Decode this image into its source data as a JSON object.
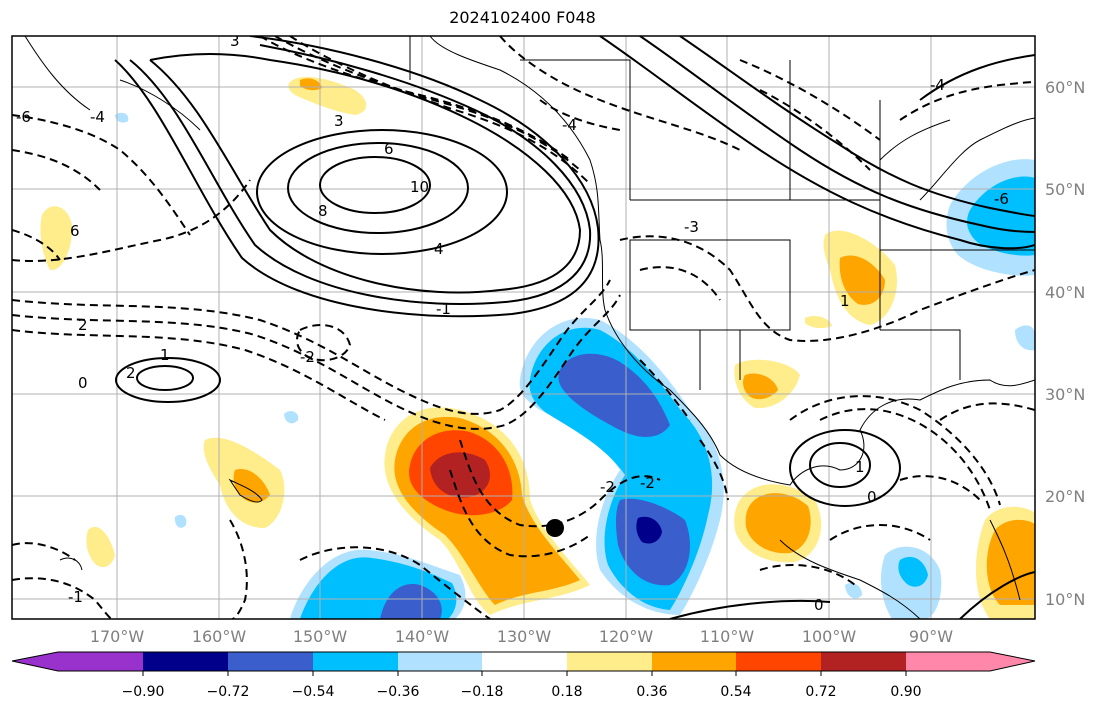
{
  "title": "2024102400 F048",
  "latitude_labels": [
    "60°N",
    "50°N",
    "40°N",
    "30°N",
    "20°N",
    "10°N"
  ],
  "longitude_labels": [
    "170°W",
    "160°W",
    "150°W",
    "140°W",
    "130°W",
    "120°W",
    "110°W",
    "100°W",
    "90°W"
  ],
  "colorbar": {
    "ticks": [
      "−0.90",
      "−0.72",
      "−0.54",
      "−0.36",
      "−0.18",
      "0.18",
      "0.36",
      "0.54",
      "0.72",
      "0.90"
    ],
    "colors": [
      "#9932cc",
      "#00008b",
      "#3a5fcd",
      "#00bfff",
      "#b0e2ff",
      "#ffffff",
      "#ffec8b",
      "#ffa500",
      "#ff4500",
      "#b22222",
      "#ff88aa"
    ]
  },
  "contour_labels": [
    "6",
    "8",
    "10",
    "4",
    "3",
    "2",
    "1",
    "0",
    "-1",
    "-2",
    "-3",
    "-4",
    "-6",
    "6",
    "2",
    "1",
    "0",
    "-2",
    "-1",
    "3",
    "-4",
    "-6",
    "1",
    "0",
    "-2",
    "-4"
  ],
  "colors": {
    "land_border": "#000000",
    "grid": "#b0b0b0"
  }
}
